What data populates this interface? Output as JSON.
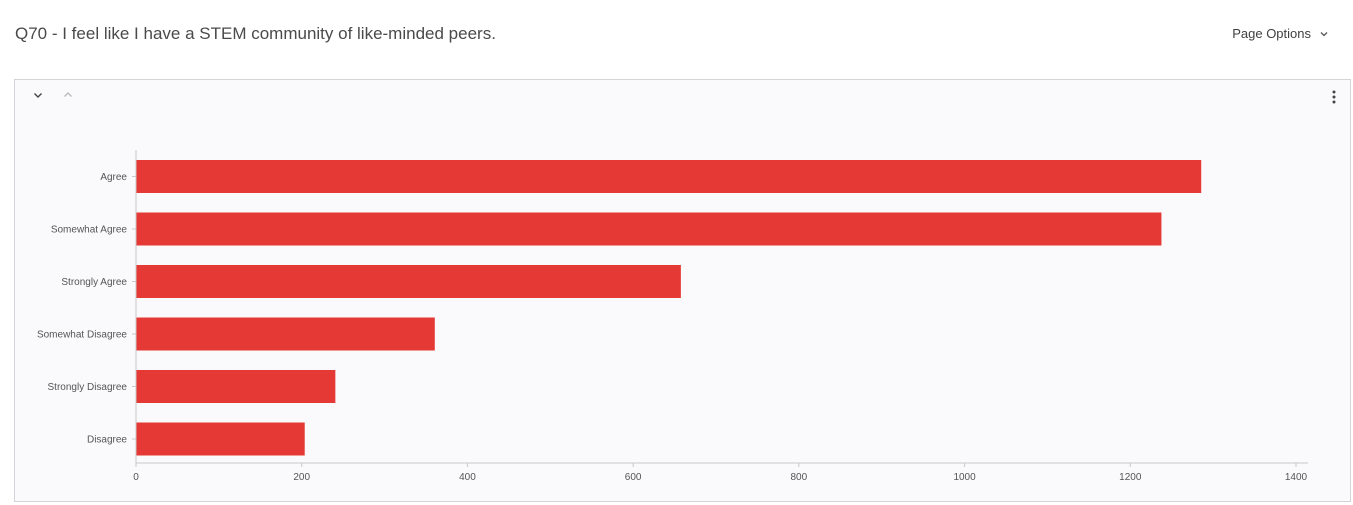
{
  "page": {
    "title": "Q70 - I feel like I have a STEM community of like-minded peers.",
    "options_label": "Page Options"
  },
  "icons": {
    "options": "chevron-down-icon",
    "collapse": "chevron-down-icon",
    "expand": "chevron-up-icon",
    "more": "kebab-menu-icon"
  },
  "colors": {
    "bar": "#e53935",
    "axis": "#c8c8c8"
  },
  "chart_data": {
    "type": "bar",
    "orientation": "horizontal",
    "categories": [
      "Agree",
      "Somewhat Agree",
      "Strongly Agree",
      "Somewhat Disagree",
      "Strongly Disagree",
      "Disagree"
    ],
    "values": [
      1285,
      1237,
      657,
      360,
      240,
      203
    ],
    "xlim": [
      0,
      1400
    ],
    "xticks": [
      0,
      200,
      400,
      600,
      800,
      1000,
      1200,
      1400
    ],
    "grid": false,
    "legend": "none"
  }
}
